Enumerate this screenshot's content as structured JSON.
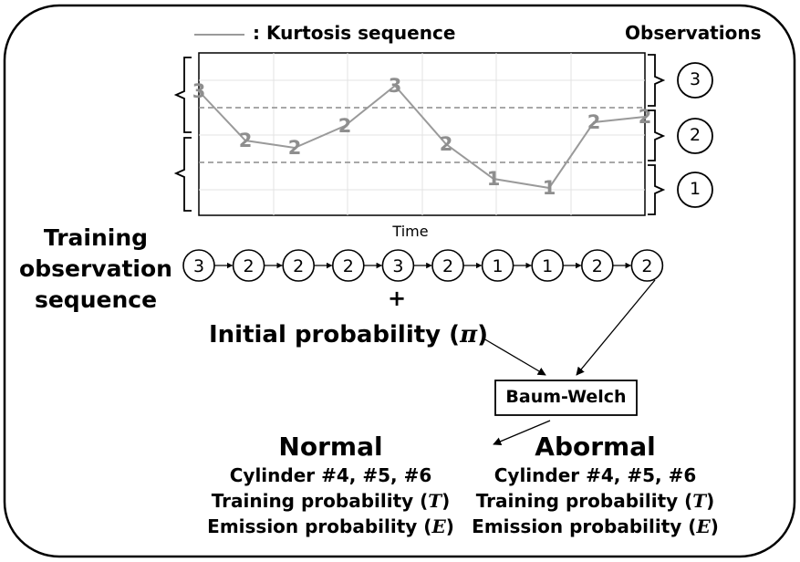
{
  "legend": {
    "label": ": Kurtosis sequence"
  },
  "observations_title": "Observations",
  "plot": {
    "xlabel": "Time",
    "sequence": [
      3,
      2,
      2,
      2,
      3,
      2,
      1,
      1,
      2,
      2
    ],
    "point_labels": [
      "3",
      "2",
      "2",
      "2",
      "3",
      "2",
      "1",
      "1",
      "2",
      "2"
    ],
    "line_color": "#9a9a9a"
  },
  "observation_levels": [
    "3",
    "2",
    "1"
  ],
  "training": {
    "title_lines": [
      "Training",
      "observation",
      "sequence"
    ],
    "sequence": [
      "3",
      "2",
      "2",
      "2",
      "3",
      "2",
      "1",
      "1",
      "2",
      "2"
    ]
  },
  "plus": "+",
  "initial_prob": {
    "label": "Initial probability (",
    "symbol": "π",
    "close": ")"
  },
  "algorithm": "Baum-Welch",
  "normal": {
    "title": "Normal",
    "cylinders": "Cylinder #4, #5, #6",
    "training_label": "Training probability (",
    "training_symbol": "T",
    "emission_label": "Emission probability (",
    "emission_symbol": "E",
    "close": ")"
  },
  "abnormal": {
    "title": "Abormal",
    "cylinders": "Cylinder #4, #5, #6",
    "training_label": "Training probability (",
    "training_symbol": "T",
    "emission_label": "Emission probability (",
    "emission_symbol": "E",
    "close": ")"
  }
}
